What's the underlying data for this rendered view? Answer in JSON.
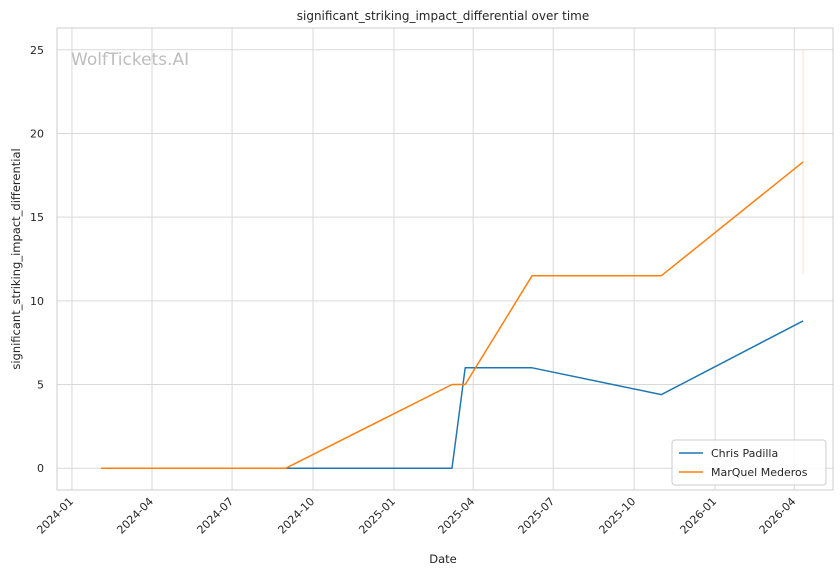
{
  "watermark": "WolfTickets.AI",
  "chart_data": {
    "type": "line",
    "title": "significant_striking_impact_differential over time",
    "xlabel": "Date",
    "ylabel": "significant_striking_impact_differential",
    "x_ticks": [
      "2024-01",
      "2024-04",
      "2024-07",
      "2024-10",
      "2025-01",
      "2025-04",
      "2025-07",
      "2025-10",
      "2026-01",
      "2026-04"
    ],
    "y_ticks": [
      0,
      5,
      10,
      15,
      20,
      25
    ],
    "xlim": [
      "2023-12-15",
      "2026-05-15"
    ],
    "ylim": [
      -1.3,
      26.3
    ],
    "grid": true,
    "legend_position": "lower-right",
    "series": [
      {
        "name": "Chris Padilla",
        "color": "#1f77b4",
        "points": [
          {
            "x": "2024-04-27",
            "y": 0
          },
          {
            "x": "2025-03-08",
            "y": 0
          },
          {
            "x": "2025-03-23",
            "y": 6.0
          },
          {
            "x": "2025-06-07",
            "y": 6.0
          },
          {
            "x": "2025-11-01",
            "y": 4.4
          },
          {
            "x": "2026-04-11",
            "y": 8.8
          }
        ]
      },
      {
        "name": "MarQuel Mederos",
        "color": "#ff7f0e",
        "points": [
          {
            "x": "2024-02-03",
            "y": 0
          },
          {
            "x": "2024-08-31",
            "y": 0
          },
          {
            "x": "2025-03-08",
            "y": 5.0
          },
          {
            "x": "2025-03-23",
            "y": 5.0
          },
          {
            "x": "2025-06-07",
            "y": 11.5
          },
          {
            "x": "2025-11-01",
            "y": 11.5
          },
          {
            "x": "2026-04-11",
            "y": 18.3
          }
        ],
        "error_bar": {
          "x": "2026-04-11",
          "low": 11.6,
          "high": 25.0
        }
      }
    ]
  }
}
